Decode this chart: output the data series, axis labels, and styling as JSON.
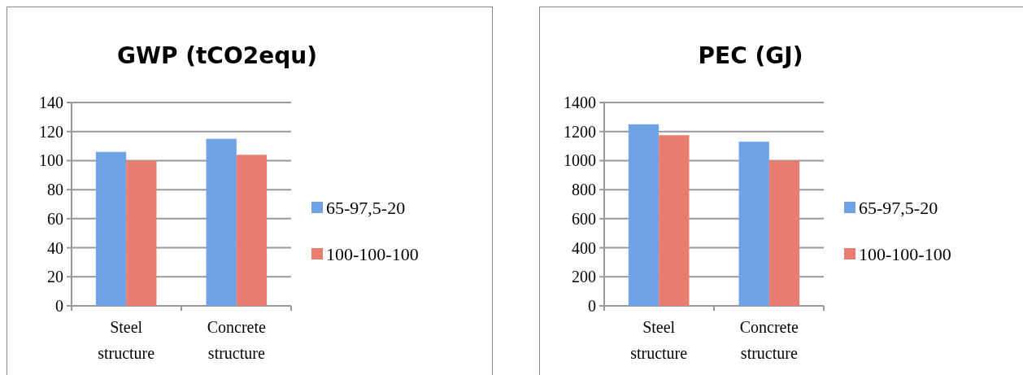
{
  "chart_data": [
    {
      "type": "bar",
      "title": "GWP (tCO2equ)",
      "categories": [
        "Steel structure",
        "Concrete structure"
      ],
      "series": [
        {
          "name": "65-97,5-20",
          "color": "#6fa3e6",
          "values": [
            106,
            115
          ]
        },
        {
          "name": "100-100-100",
          "color": "#ea7d72",
          "values": [
            100,
            104
          ]
        }
      ],
      "ylim": [
        0,
        140
      ],
      "yticks": [
        0,
        20,
        40,
        60,
        80,
        100,
        120,
        140
      ],
      "grid": "y",
      "legend": "right"
    },
    {
      "type": "bar",
      "title": "PEC (GJ)",
      "categories": [
        "Steel structure",
        "Concrete structure"
      ],
      "series": [
        {
          "name": "65-97,5-20",
          "color": "#6fa3e6",
          "values": [
            1250,
            1130
          ]
        },
        {
          "name": "100-100-100",
          "color": "#ea7d72",
          "values": [
            1175,
            1000
          ]
        }
      ],
      "ylim": [
        0,
        1400
      ],
      "yticks": [
        0,
        200,
        400,
        600,
        800,
        1000,
        1200,
        1400
      ],
      "grid": "y",
      "legend": "right"
    }
  ]
}
